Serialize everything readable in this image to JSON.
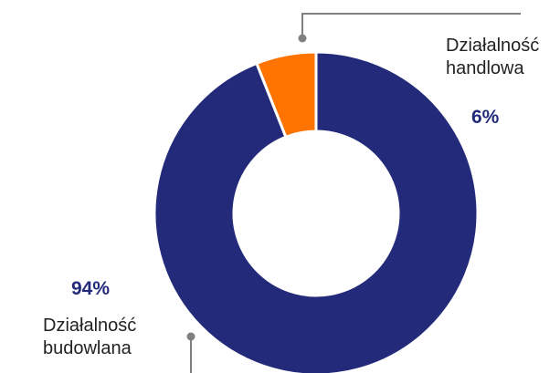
{
  "colors": {
    "primary": "#232a7a",
    "accent": "#ff7300",
    "leader": "#808080"
  },
  "chart_data": {
    "type": "pie",
    "style": "donut",
    "categories": [
      "Działalność handlowa",
      "Działalność budowlana"
    ],
    "values": [
      6,
      94
    ],
    "value_labels": [
      "6%",
      "94%"
    ],
    "slices": [
      {
        "label_lines": [
          "Działalność",
          "handlowa"
        ],
        "value": 6,
        "value_label": "6%",
        "color": "#ff7300"
      },
      {
        "label_lines": [
          "Działalność",
          "budowlana"
        ],
        "value": 94,
        "value_label": "94%",
        "color": "#232a7a"
      }
    ]
  }
}
